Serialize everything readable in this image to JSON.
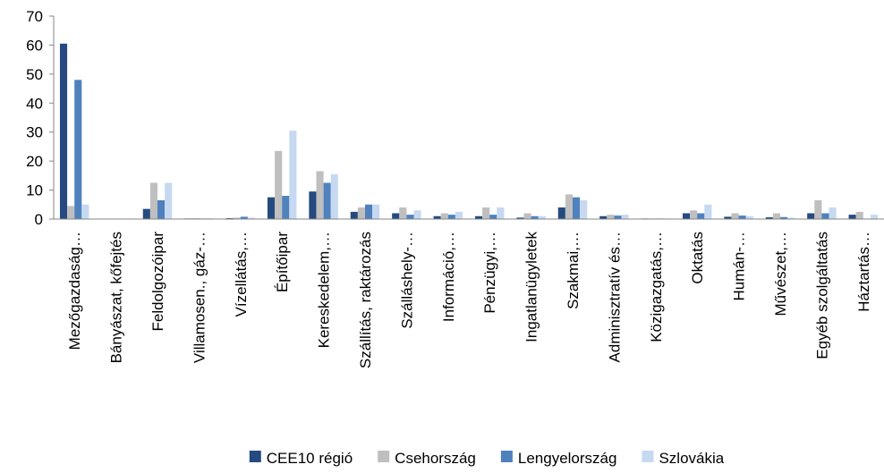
{
  "chart_data": {
    "type": "bar",
    "categories": [
      "Mezőgazdaság…",
      "Bányászat, kőfejtés",
      "Feldolgozóipar",
      "Villamosen., gáz-…",
      "Vízellátás,…",
      "Építőipar",
      "Kereskedelem,…",
      "Szállítás, raktározás",
      "Szálláshely-…",
      "Információ,…",
      "Pénzügyi,…",
      "Ingatlanügyletek",
      "Szakmai,…",
      "Adminisztratív és…",
      "Közigazgatás,…",
      "Oktatás",
      "Humán-…",
      "Művészet,…",
      "Egyéb szolgáltatás",
      "Háztartás…"
    ],
    "series": [
      {
        "name": "CEE10 régió",
        "color": "#254a7f",
        "values": [
          60.5,
          0,
          3.5,
          0.2,
          0.3,
          7.5,
          9.5,
          2.5,
          2,
          1,
          1,
          0.5,
          4,
          1,
          0.2,
          2,
          0.8,
          0.6,
          2,
          1.5
        ]
      },
      {
        "name": "Csehország",
        "color": "#bfbfbf",
        "values": [
          4.5,
          0,
          12.5,
          0.3,
          0.5,
          23.5,
          16.5,
          4,
          4,
          2,
          4,
          2,
          8.5,
          1.5,
          0.2,
          3,
          2,
          2,
          6.5,
          2.5
        ]
      },
      {
        "name": "Lengyelország",
        "color": "#4f81bd",
        "values": [
          48,
          0,
          6.5,
          0.2,
          0.8,
          8,
          12.5,
          5,
          1.5,
          1.5,
          1.5,
          1,
          7.5,
          1.2,
          0.2,
          2,
          1.2,
          0.7,
          2,
          0
        ]
      },
      {
        "name": "Szlovákia",
        "color": "#c6d9f1",
        "values": [
          5,
          0,
          12.5,
          0.3,
          0.5,
          30.5,
          15.5,
          5,
          3,
          2.5,
          4,
          1,
          6.5,
          1.5,
          0.2,
          5,
          1,
          0.5,
          4,
          1.5
        ]
      }
    ],
    "ylim": [
      0,
      70
    ],
    "yticks": [
      0,
      10,
      20,
      30,
      40,
      50,
      60,
      70
    ],
    "grid": false,
    "legend": "bottom"
  }
}
